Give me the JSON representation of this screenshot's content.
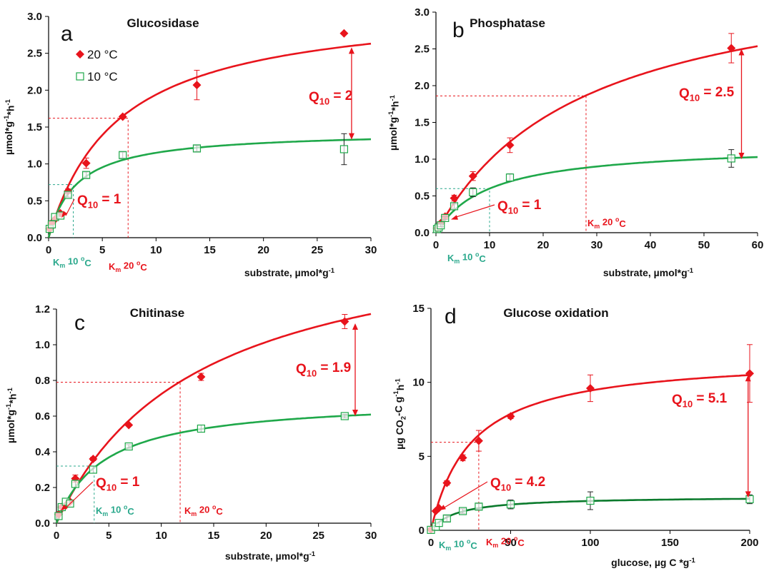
{
  "colors": {
    "warm": "#e8141c",
    "cold": "#1fa84a",
    "cold_dark": "#0a7a2c",
    "km_cold": "#2aa88c",
    "axis": "#000000",
    "error": "#222222"
  },
  "chart_data": [
    {
      "type": "scatter",
      "letter": "a",
      "title": "Glucosidase",
      "ylabel": "µmol*g-1*h-1",
      "ylabel_parts": [
        "µmol*g",
        "-1",
        "*h",
        "-1"
      ],
      "xlabel": "substrate, µmol*g-1",
      "xlabel_parts": [
        "substrate, µmol*g",
        "-1"
      ],
      "xlim": [
        0,
        30
      ],
      "ylim": [
        0,
        3.0
      ],
      "xticks": [
        0,
        5,
        10,
        15,
        20,
        25,
        30
      ],
      "xtick_labels": [
        "0",
        "5",
        "10",
        "15",
        "20",
        "25",
        "30"
      ],
      "yticks": [
        0,
        0.5,
        1.0,
        1.5,
        2.0,
        2.5,
        3.0
      ],
      "ytick_labels": [
        "0.0",
        "0.5",
        "1.0",
        "1.5",
        "2.0",
        "2.5",
        "3.0"
      ],
      "legend": [
        "20 °C",
        "10 °C"
      ],
      "series": [
        {
          "name": "20 °C",
          "marker": "diamond",
          "x": [
            0.1,
            0.3,
            0.6,
            1.1,
            1.8,
            3.5,
            6.9,
            13.8,
            27.5
          ],
          "y": [
            0.12,
            0.2,
            0.25,
            0.33,
            0.63,
            1.01,
            1.64,
            2.07,
            2.77
          ],
          "err": [
            0,
            0,
            0,
            0,
            0.03,
            0.07,
            0.02,
            0.2,
            0
          ],
          "vmax": 3.2,
          "km": 6.5
        },
        {
          "name": "10 °C",
          "marker": "square",
          "x": [
            0.1,
            0.3,
            0.6,
            1.1,
            1.8,
            3.5,
            6.9,
            13.8,
            27.5
          ],
          "y": [
            0.12,
            0.18,
            0.28,
            0.3,
            0.58,
            0.85,
            1.12,
            1.21,
            1.2
          ],
          "err": [
            0,
            0,
            0,
            0,
            0.03,
            0.04,
            0.04,
            0.04,
            0.21
          ],
          "vmax": 1.45,
          "km": 2.6
        }
      ],
      "km_warm": {
        "x": 7.4,
        "y": 1.62,
        "label": "Km 20 °C",
        "parts": [
          "K",
          "m",
          " 20 ",
          "o",
          "C"
        ]
      },
      "km_cold": {
        "x": 2.3,
        "y": 0.72,
        "label": "Km 10 °C",
        "parts": [
          "K",
          "m",
          " 10 ",
          "o",
          "C"
        ]
      },
      "q10_high": {
        "label": "Q10 = 2",
        "parts": [
          "Q",
          "10",
          " = 2"
        ],
        "x": 28.2,
        "y1": 1.33,
        "y2": 2.58
      },
      "q10_low": {
        "label": "Q10 = 1",
        "parts": [
          "Q",
          "10",
          " = 1"
        ],
        "arrow_to": [
          1.2,
          0.27
        ]
      }
    },
    {
      "type": "scatter",
      "letter": "b",
      "title": "Phosphatase",
      "ylabel": "µmol*g-1*h-1",
      "ylabel_parts": [
        "µmol*g",
        "-1",
        "*h",
        "-1"
      ],
      "xlabel": "substrate, µmol*g-1",
      "xlabel_parts": [
        "substrate, µmol*g",
        "-1"
      ],
      "xlim": [
        0,
        60
      ],
      "ylim": [
        0,
        3.0
      ],
      "xticks": [
        0,
        10,
        20,
        30,
        40,
        50,
        60
      ],
      "xtick_labels": [
        "0",
        "10",
        "20",
        "30",
        "40",
        "50",
        "60"
      ],
      "yticks": [
        0,
        0.5,
        1.0,
        1.5,
        2.0,
        2.5,
        3.0
      ],
      "ytick_labels": [
        "0.0",
        "0.5",
        "1.0",
        "1.5",
        "2.0",
        "2.5",
        "3.0"
      ],
      "legend": [],
      "series": [
        {
          "name": "20 °C",
          "marker": "diamond",
          "x": [
            0.2,
            0.5,
            0.9,
            1.7,
            3.4,
            6.9,
            13.8,
            55.1
          ],
          "y": [
            0.06,
            0.08,
            0.13,
            0.22,
            0.47,
            0.77,
            1.19,
            2.51
          ],
          "err": [
            0,
            0,
            0.02,
            0.03,
            0.04,
            0.06,
            0.1,
            0.2
          ],
          "vmax": 3.7,
          "km": 27.5
        },
        {
          "name": "10 °C",
          "marker": "square",
          "x": [
            0.2,
            0.5,
            0.9,
            1.7,
            3.4,
            6.9,
            13.8,
            55.1
          ],
          "y": [
            0.05,
            0.07,
            0.1,
            0.2,
            0.36,
            0.55,
            0.75,
            1.01
          ],
          "err": [
            0,
            0,
            0.02,
            0.02,
            0.03,
            0.06,
            0.05,
            0.12
          ],
          "vmax": 1.2,
          "km": 10
        }
      ],
      "km_warm": {
        "x": 28,
        "y": 1.86,
        "label": "Km 20 °C",
        "parts": [
          "K",
          "m",
          " 20 ",
          "o",
          "C"
        ]
      },
      "km_cold": {
        "x": 10,
        "y": 0.6,
        "label": "Km 10 °C",
        "parts": [
          "K",
          "m",
          " 10 ",
          "o",
          "C"
        ]
      },
      "q10_high": {
        "label": "Q10 = 2.5",
        "parts": [
          "Q",
          "10",
          " = 2.5"
        ],
        "x": 57,
        "y1": 1.0,
        "y2": 2.5
      },
      "q10_low": {
        "label": "Q10 = 1",
        "parts": [
          "Q",
          "10",
          " = 1"
        ],
        "arrow_to": [
          2.8,
          0.18
        ]
      }
    },
    {
      "type": "scatter",
      "letter": "c",
      "title": "Chitinase",
      "ylabel": "µmol*g-1*h-1",
      "ylabel_parts": [
        "µmol*g",
        "-1",
        "*h",
        "-1"
      ],
      "xlabel": "substrate, µmol*g-1",
      "xlabel_parts": [
        "substrate, µmol*g",
        "-1"
      ],
      "xlim": [
        0,
        30
      ],
      "ylim": [
        0,
        1.2
      ],
      "xticks": [
        0,
        5,
        10,
        15,
        20,
        25,
        30
      ],
      "xtick_labels": [
        "0",
        "5",
        "10",
        "15",
        "20",
        "25",
        "30"
      ],
      "yticks": [
        0,
        0.2,
        0.4,
        0.6,
        0.8,
        1.0,
        1.2
      ],
      "ytick_labels": [
        "0.0",
        "0.2",
        "0.4",
        "0.6",
        "0.8",
        "1.0",
        "1.2"
      ],
      "legend": [],
      "series": [
        {
          "name": "20 °C",
          "marker": "diamond",
          "x": [
            0.2,
            0.5,
            0.9,
            1.3,
            1.8,
            3.5,
            6.9,
            13.8,
            27.5
          ],
          "y": [
            0.05,
            0.09,
            0.1,
            0.12,
            0.25,
            0.36,
            0.55,
            0.82,
            1.13
          ],
          "err": [
            0,
            0,
            0,
            0,
            0.02,
            0.01,
            0,
            0.02,
            0.04
          ],
          "vmax": 1.7,
          "km": 13.5
        },
        {
          "name": "10 °C",
          "marker": "square",
          "x": [
            0.2,
            0.5,
            0.9,
            1.3,
            1.8,
            3.5,
            6.9,
            13.8,
            27.5
          ],
          "y": [
            0.04,
            0.09,
            0.12,
            0.11,
            0.22,
            0.3,
            0.43,
            0.53,
            0.6
          ],
          "err": [
            0,
            0,
            0,
            0,
            0.02,
            0.02,
            0.01,
            0.02,
            0.01
          ],
          "vmax": 0.7,
          "km": 4.5
        }
      ],
      "km_warm": {
        "x": 11.8,
        "y": 0.79,
        "label": "Km 20 °C",
        "parts": [
          "K",
          "m",
          " 20 ",
          "o",
          "C"
        ]
      },
      "km_cold": {
        "x": 3.6,
        "y": 0.32,
        "label": "Km 10 °C",
        "parts": [
          "K",
          "m",
          " 10 ",
          "o",
          "C"
        ]
      },
      "q10_high": {
        "label": "Q10 = 1.9",
        "parts": [
          "Q",
          "10",
          " = 1.9"
        ],
        "x": 28.5,
        "y1": 0.6,
        "y2": 1.12
      },
      "q10_low": {
        "label": "Q10 = 1",
        "parts": [
          "Q",
          "10",
          " = 1"
        ],
        "arrow_to": [
          0.4,
          0.07
        ]
      }
    },
    {
      "type": "scatter",
      "letter": "d",
      "title": "Glucose oxidation",
      "ylabel": "µg CO2-C g-1h-1",
      "ylabel_parts": [
        "µg CO",
        "2",
        "-C g",
        "-1",
        "h",
        "-1"
      ],
      "xlabel": "glucose, µg C *g-1",
      "xlabel_parts": [
        "glucose, µg C *g",
        "-1"
      ],
      "xlim": [
        0,
        200
      ],
      "ylim": [
        0,
        15
      ],
      "xticks": [
        0,
        50,
        100,
        150,
        200
      ],
      "xtick_labels": [
        "0",
        "50",
        "100",
        "150",
        "200"
      ],
      "yticks": [
        0,
        5,
        10,
        15
      ],
      "ytick_labels": [
        "0",
        "5",
        "10",
        "15"
      ],
      "legend": [],
      "series": [
        {
          "name": "20 °C",
          "marker": "diamond",
          "x": [
            0,
            3,
            5,
            10,
            20,
            30,
            50,
            100,
            200
          ],
          "y": [
            0.05,
            1.3,
            1.5,
            3.2,
            4.9,
            6.05,
            7.7,
            9.6,
            10.6
          ],
          "err": [
            0,
            0,
            0,
            0.15,
            0.2,
            0.7,
            0.15,
            0.9,
            1.95
          ],
          "vmax": 11.8,
          "km": 25
        },
        {
          "name": "10 °C",
          "marker": "square",
          "x": [
            0,
            3,
            5,
            10,
            20,
            30,
            50,
            100,
            200
          ],
          "y": [
            0.03,
            0.25,
            0.5,
            0.8,
            1.3,
            1.6,
            1.75,
            2.0,
            2.1
          ],
          "err": [
            0,
            0,
            0,
            0.2,
            0.15,
            0.2,
            0.3,
            0.6,
            0.3
          ],
          "vmax": 2.3,
          "km": 16
        }
      ],
      "km_warm": {
        "x": 30,
        "y": 5.95,
        "label": "Km 20 °C",
        "parts": [
          "K",
          "m",
          " 20 ",
          "o",
          "C"
        ]
      },
      "km_cold": {
        "x": 0,
        "y": 0,
        "label": "Km 10 °C",
        "parts": [
          "K",
          "m",
          " 10 ",
          "o",
          "C"
        ],
        "no_lines": true
      },
      "q10_high": {
        "label": "Q10 = 5.1",
        "parts": [
          "Q",
          "10",
          " = 5.1"
        ],
        "x": 199,
        "y1": 2.2,
        "y2": 10.5
      },
      "q10_low": {
        "label": "Q10 = 4.2",
        "parts": [
          "Q",
          "10",
          " = 4.2"
        ],
        "arrow_to": [
          5,
          1.35
        ]
      }
    }
  ]
}
